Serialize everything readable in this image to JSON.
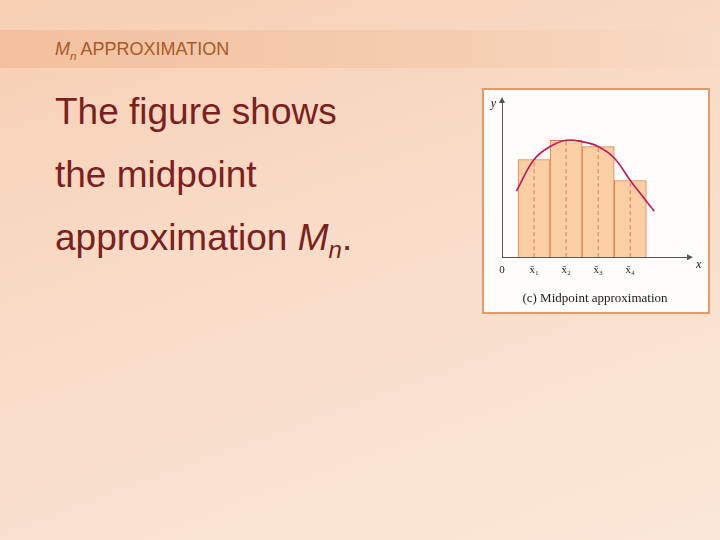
{
  "slide": {
    "title": [
      {
        "text": "M",
        "italic": true
      },
      {
        "text": "n",
        "italic": true,
        "sub": true
      },
      {
        "text": " APPROXIMATION"
      }
    ],
    "body": [
      [
        {
          "text": "The figure shows"
        }
      ],
      [
        {
          "text": "the midpoint"
        }
      ],
      [
        {
          "text": "approximation "
        },
        {
          "text": "M",
          "italic": true
        },
        {
          "text": "n",
          "italic": true,
          "sub": true
        },
        {
          "text": "."
        }
      ]
    ]
  },
  "chart_data": {
    "type": "bar",
    "title": "(c) Midpoint approximation",
    "x_label": "x",
    "y_label": "y",
    "x": [
      1,
      2,
      3,
      4
    ],
    "values": [
      3.4,
      4.07,
      3.85,
      2.67
    ],
    "color": "#fbcfa3",
    "curve": {
      "type": "line",
      "color": "#c2185b",
      "x": [
        0.45,
        1,
        1.5,
        2,
        2.5,
        3,
        3.5,
        4,
        4.5,
        4.75
      ],
      "values": [
        2.3,
        3.4,
        3.85,
        4.07,
        4.02,
        3.85,
        3.45,
        2.67,
        1.95,
        1.6
      ]
    },
    "xlim": [
      0,
      5.8
    ],
    "ylim": [
      0,
      5.4
    ],
    "xticks": [
      0,
      {
        "value": 1,
        "label": "x̄₁"
      },
      {
        "value": 2,
        "label": "x̄₂"
      },
      {
        "value": 3,
        "label": "x̄₃"
      },
      {
        "value": 4,
        "label": "x̄₄"
      }
    ],
    "tick_labels": "x",
    "grid": false
  }
}
